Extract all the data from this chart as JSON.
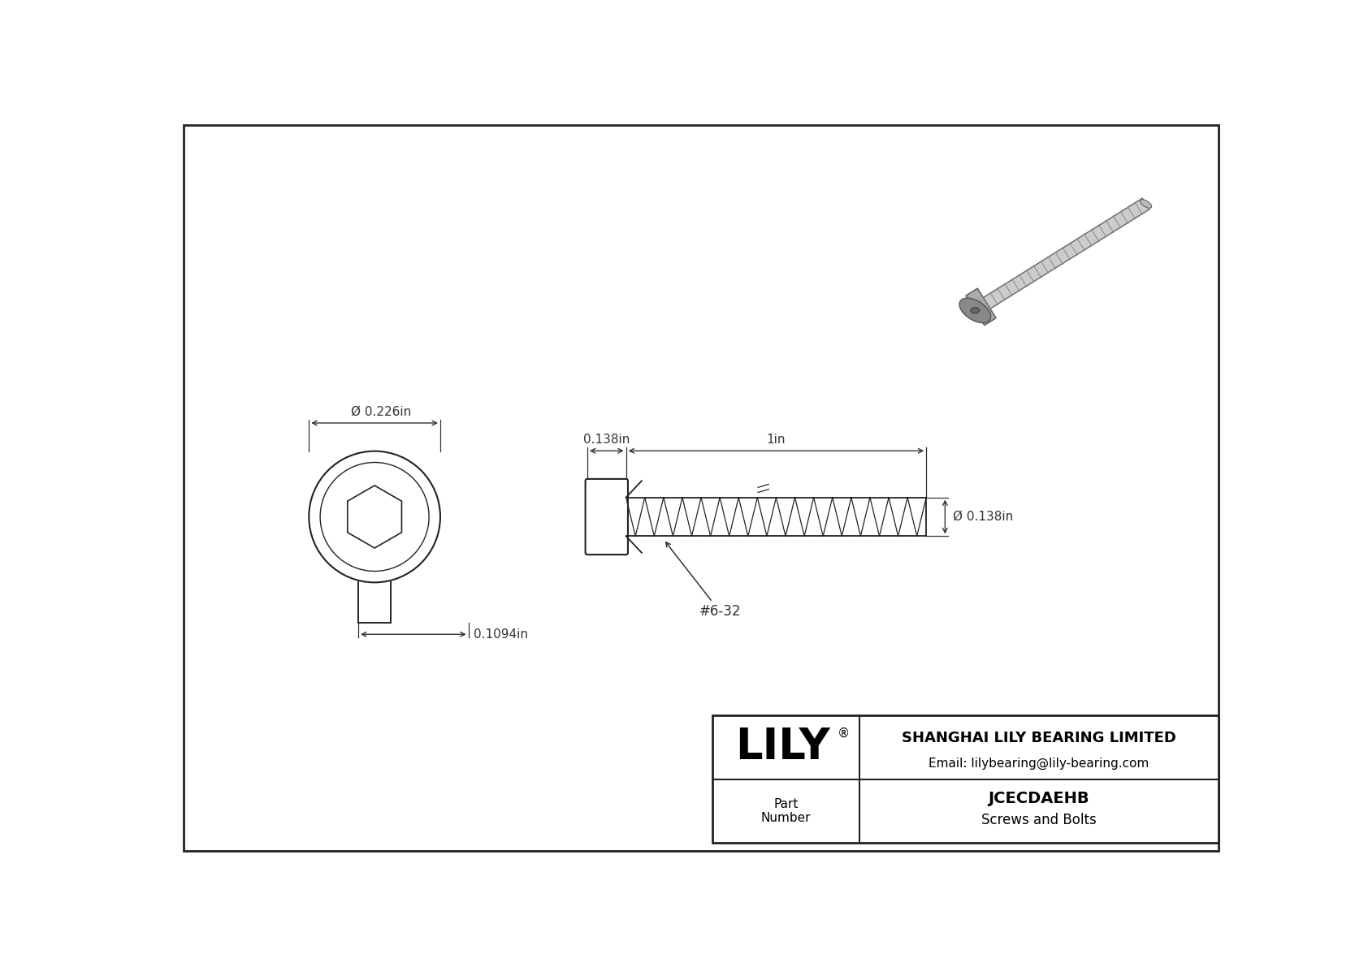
{
  "bg_color": "#ffffff",
  "border_color": "#222222",
  "line_color": "#222222",
  "dim_color": "#333333",
  "company_name": "SHANGHAI LILY BEARING LIMITED",
  "company_email": "Email: lilybearing@lily-bearing.com",
  "part_number": "JCECDAEHB",
  "part_category": "Screws and Bolts",
  "part_label": "Part\nNumber",
  "logo_text": "LILY",
  "logo_reg": "®",
  "dim_head_diameter": "Ø 0.226in",
  "dim_head_length": "0.1094in",
  "dim_shank_length": "0.138in",
  "dim_thread_length": "1in",
  "dim_thread_diameter": "Ø 0.138in",
  "dim_thread_label": "#6-32",
  "dim_fontsize": 11,
  "logo_fontsize": 38,
  "company_fontsize": 13,
  "email_fontsize": 11,
  "part_num_fontsize": 14,
  "part_cat_fontsize": 12
}
